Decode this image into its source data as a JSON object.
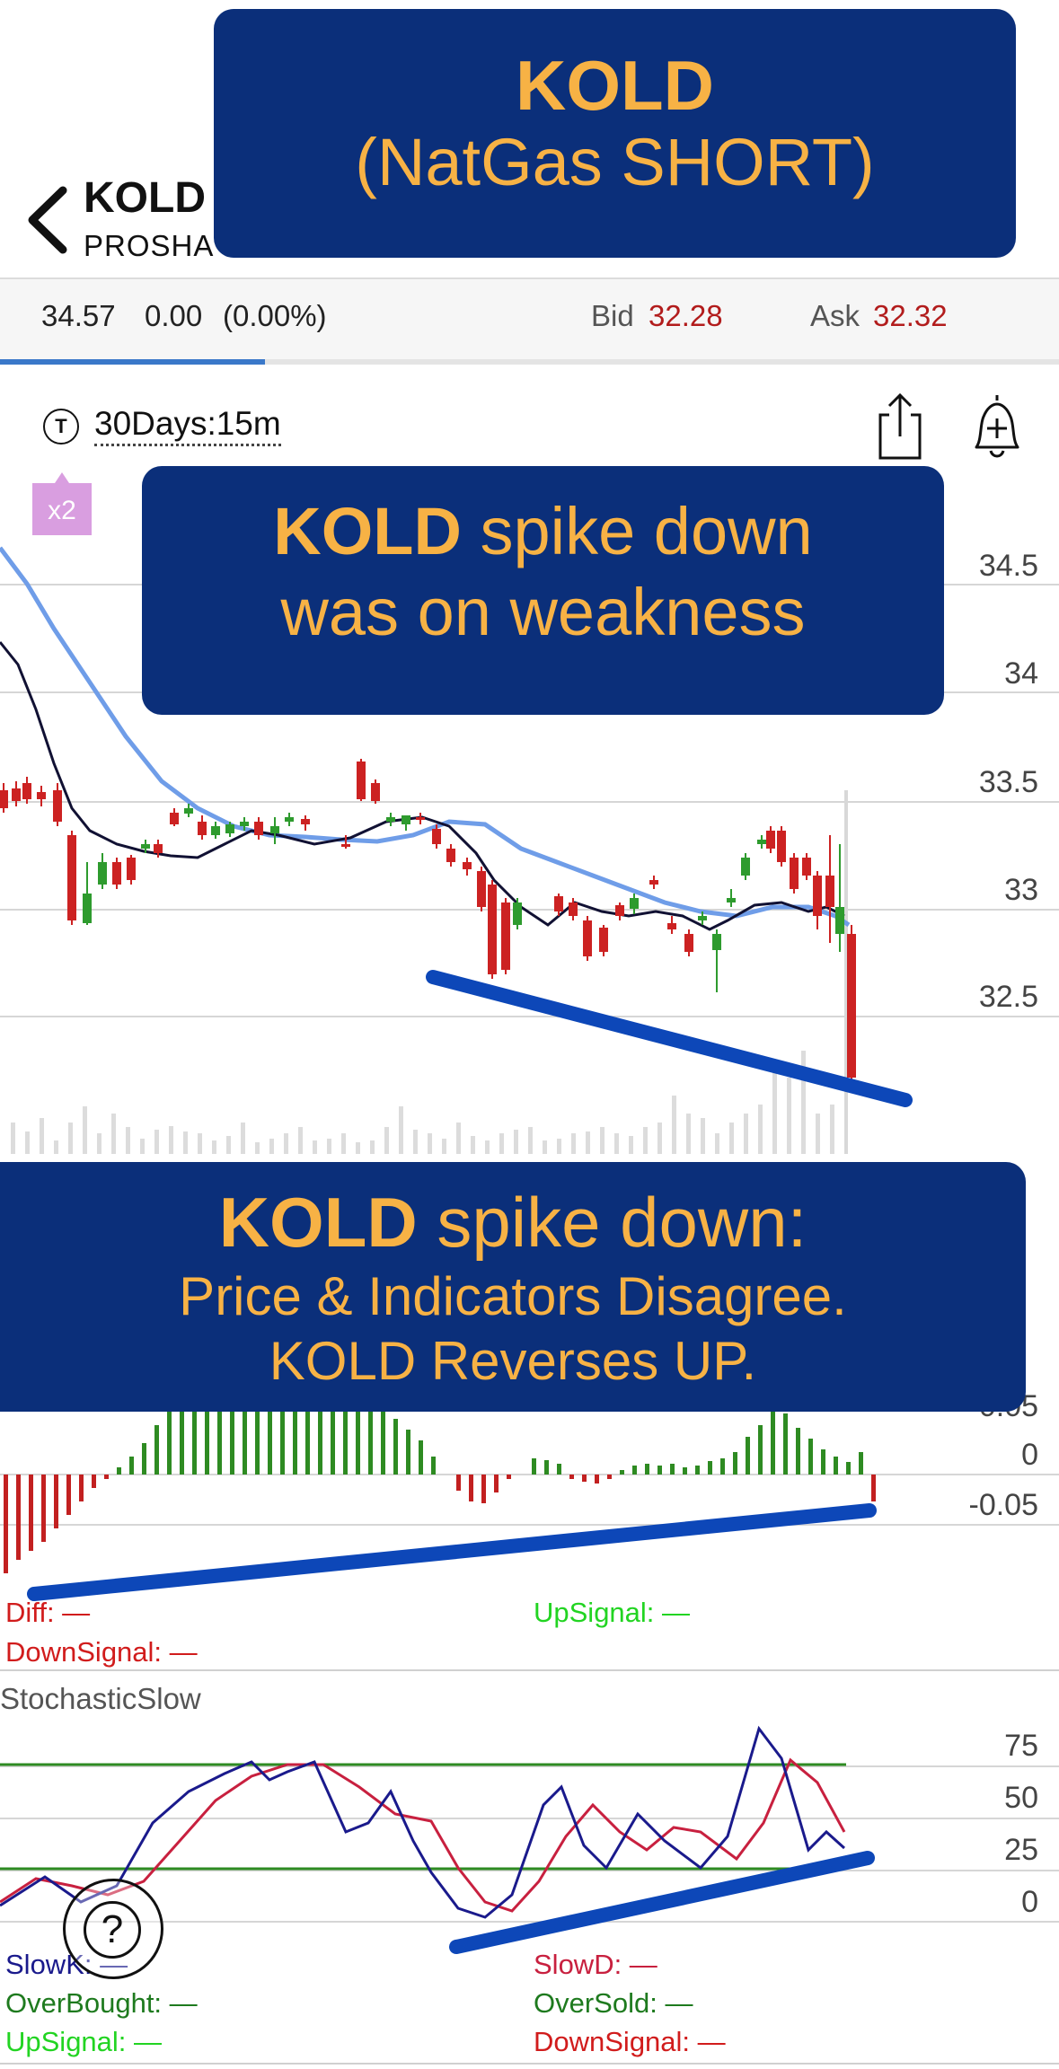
{
  "header": {
    "symbol": "KOLD",
    "name": "PROSHA",
    "back_icon": "chevron-left-icon"
  },
  "quote": {
    "last": "34.57",
    "change": "0.00",
    "change_pct": "(0.00%)",
    "bid_label": "Bid",
    "bid": "32.28",
    "ask_label": "Ask",
    "ask": "32.32"
  },
  "toolbar": {
    "timezone_badge": "T",
    "period": "30Days:15m",
    "share_icon": "share-icon",
    "alert_icon": "bell-plus-icon"
  },
  "x2_badge": "x2",
  "price_axis": [
    "34.5",
    "34",
    "33.5",
    "33",
    "32.5"
  ],
  "macd": {
    "axis": [
      "0.05",
      "0",
      "-0.05"
    ],
    "legend": {
      "diff": "Diff: —",
      "upsignal": "UpSignal: —",
      "downsignal": "DownSignal: —"
    }
  },
  "stochastic": {
    "title": "StochasticSlow",
    "axis": [
      "75",
      "50",
      "25",
      "0"
    ],
    "legend": {
      "slowk": "SlowK: —",
      "slowd": "SlowD: —",
      "overbought": "OverBought: —",
      "oversold": "OverSold: —",
      "upsignal": "UpSignal: —",
      "downsignal": "DownSignal: —"
    }
  },
  "banners": {
    "top_line1": "KOLD",
    "top_line2": "(NatGas SHORT)",
    "mid_bold": "KOLD",
    "mid_rest": " spike down",
    "mid_line2": "was on weakness",
    "bottom_bold": "KOLD",
    "bottom_rest": " spike down:",
    "bottom_line2": "Price & Indicators Disagree.",
    "bottom_line3": "KOLD Reverses UP."
  },
  "help_label": "?",
  "colors": {
    "banner_bg": "#0b2f7a",
    "banner_text": "#f7b245",
    "candle_up": "#2e9b2e",
    "candle_down": "#cc2222",
    "ma_fast": "#111133",
    "ma_slow": "#6f9de8",
    "trend_line": "#0d47b8",
    "slowk": "#1a1a8c",
    "slowd": "#c8203f",
    "threshold": "#2e8b22"
  }
}
